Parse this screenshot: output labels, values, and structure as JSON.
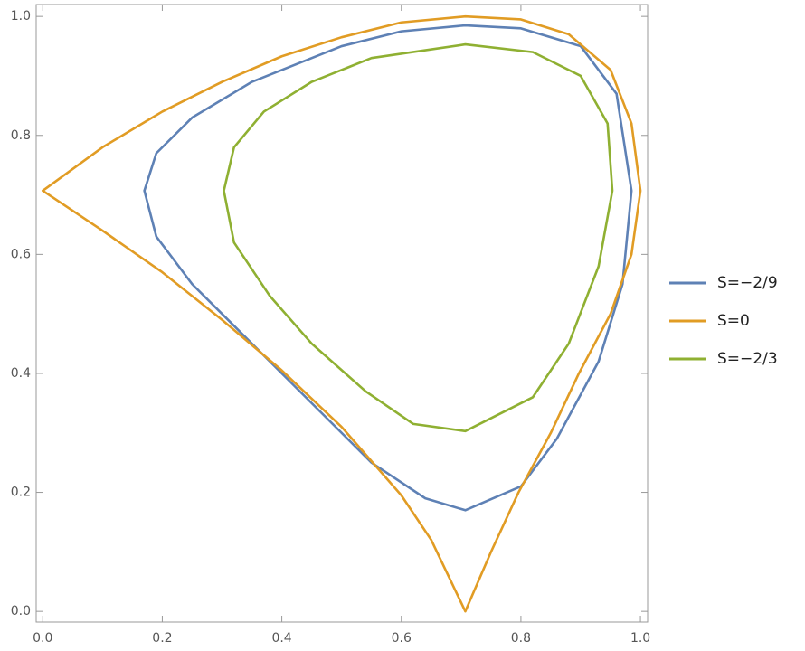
{
  "chart_data": {
    "type": "line",
    "closed": true,
    "xlim": [
      -0.011,
      1.012
    ],
    "ylim": [
      -0.018,
      1.02
    ],
    "xticks": [
      {
        "value": 0,
        "label": "0.0"
      },
      0.2,
      0.4,
      0.6,
      0.8,
      {
        "value": 1,
        "label": "1.0"
      }
    ],
    "yticks": [
      {
        "value": 0,
        "label": "0.0"
      },
      0.2,
      0.4,
      0.6,
      0.8,
      {
        "value": 1,
        "label": "1.0"
      }
    ],
    "legend": "right",
    "series": [
      {
        "name": "S=−2/9",
        "color": "#5e81b5",
        "x": [
          0.17,
          0.19,
          0.25,
          0.35,
          0.5,
          0.6,
          0.707,
          0.8,
          0.9,
          0.96,
          0.985,
          0.97,
          0.93,
          0.86,
          0.8,
          0.707,
          0.64,
          0.55,
          0.45,
          0.35,
          0.25,
          0.19,
          0.17
        ],
        "values": [
          0.707,
          0.77,
          0.83,
          0.89,
          0.95,
          0.975,
          0.985,
          0.98,
          0.95,
          0.87,
          0.707,
          0.55,
          0.42,
          0.29,
          0.21,
          0.17,
          0.19,
          0.25,
          0.35,
          0.45,
          0.55,
          0.63,
          0.707
        ]
      },
      {
        "name": "S=0",
        "color": "#e19c24",
        "x": [
          0,
          0.1,
          0.2,
          0.3,
          0.4,
          0.5,
          0.6,
          0.707,
          0.8,
          0.88,
          0.95,
          0.985,
          1.0,
          0.985,
          0.95,
          0.897,
          0.85,
          0.796,
          0.75,
          0.707,
          0.65,
          0.6,
          0.5,
          0.4,
          0.3,
          0.2,
          0.1,
          0
        ],
        "values": [
          0.707,
          0.78,
          0.84,
          0.89,
          0.933,
          0.965,
          0.99,
          1.0,
          0.995,
          0.97,
          0.91,
          0.82,
          0.707,
          0.6,
          0.5,
          0.4,
          0.3,
          0.2,
          0.1,
          0,
          0.12,
          0.195,
          0.31,
          0.405,
          0.49,
          0.57,
          0.64,
          0.707
        ]
      },
      {
        "name": "S=−2/3",
        "color": "#8fb032",
        "x": [
          0.303,
          0.32,
          0.37,
          0.45,
          0.55,
          0.707,
          0.82,
          0.9,
          0.945,
          0.953,
          0.93,
          0.88,
          0.82,
          0.707,
          0.62,
          0.54,
          0.45,
          0.38,
          0.32,
          0.303
        ],
        "values": [
          0.707,
          0.78,
          0.84,
          0.89,
          0.93,
          0.953,
          0.94,
          0.9,
          0.82,
          0.707,
          0.58,
          0.45,
          0.36,
          0.303,
          0.315,
          0.37,
          0.45,
          0.53,
          0.62,
          0.707
        ]
      }
    ]
  }
}
